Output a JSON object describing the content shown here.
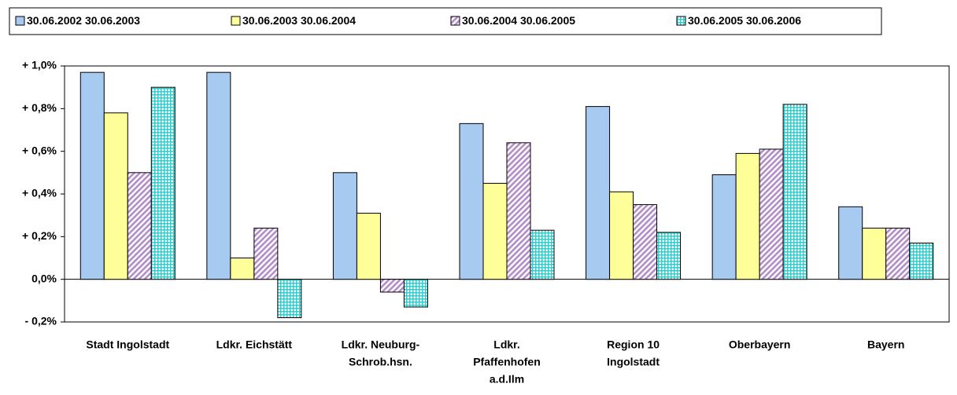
{
  "chart_data": {
    "type": "bar",
    "categories": [
      [
        "Stadt Ingolstadt"
      ],
      [
        "Ldkr. Eichstätt"
      ],
      [
        "Ldkr. Neuburg-",
        "Schrob.hsn."
      ],
      [
        "Ldkr.",
        "Pfaffenhofen",
        "a.d.Ilm"
      ],
      [
        "Region 10",
        "Ingolstadt"
      ],
      [
        "Oberbayern"
      ],
      [
        "Bayern"
      ]
    ],
    "series": [
      {
        "name": "30.06.2002 30.06.2003",
        "color": "#a6caf0",
        "pattern": "solid",
        "values": [
          0.97,
          0.97,
          0.5,
          0.73,
          0.81,
          0.49,
          0.34
        ]
      },
      {
        "name": "30.06.2003 30.06.2004",
        "color": "#ffff99",
        "pattern": "solid",
        "values": [
          0.78,
          0.1,
          0.31,
          0.45,
          0.41,
          0.59,
          0.24
        ]
      },
      {
        "name": "30.06.2004 30.06.2005",
        "color": "#b48cc8",
        "pattern": "diagonal",
        "values": [
          0.5,
          0.24,
          -0.06,
          0.64,
          0.35,
          0.61,
          0.24
        ]
      },
      {
        "name": "30.06.2005 30.06.2006",
        "color": "#33cccc",
        "pattern": "grid",
        "values": [
          0.9,
          -0.18,
          -0.13,
          0.23,
          0.22,
          0.82,
          0.17
        ]
      }
    ],
    "ylim": [
      -0.2,
      1.0
    ],
    "yticks": [
      {
        "value": -0.2,
        "label": "- 0,2%"
      },
      {
        "value": 0,
        "label": "0,0%"
      },
      {
        "value": 0.2,
        "label": "+ 0,2%"
      },
      {
        "value": 0.4,
        "label": "+ 0,4%"
      },
      {
        "value": 0.6,
        "label": "+ 0,6%"
      },
      {
        "value": 0.8,
        "label": "+ 0,8%"
      },
      {
        "value": 1.0,
        "label": "+ 1,0%"
      }
    ],
    "grid": false
  }
}
